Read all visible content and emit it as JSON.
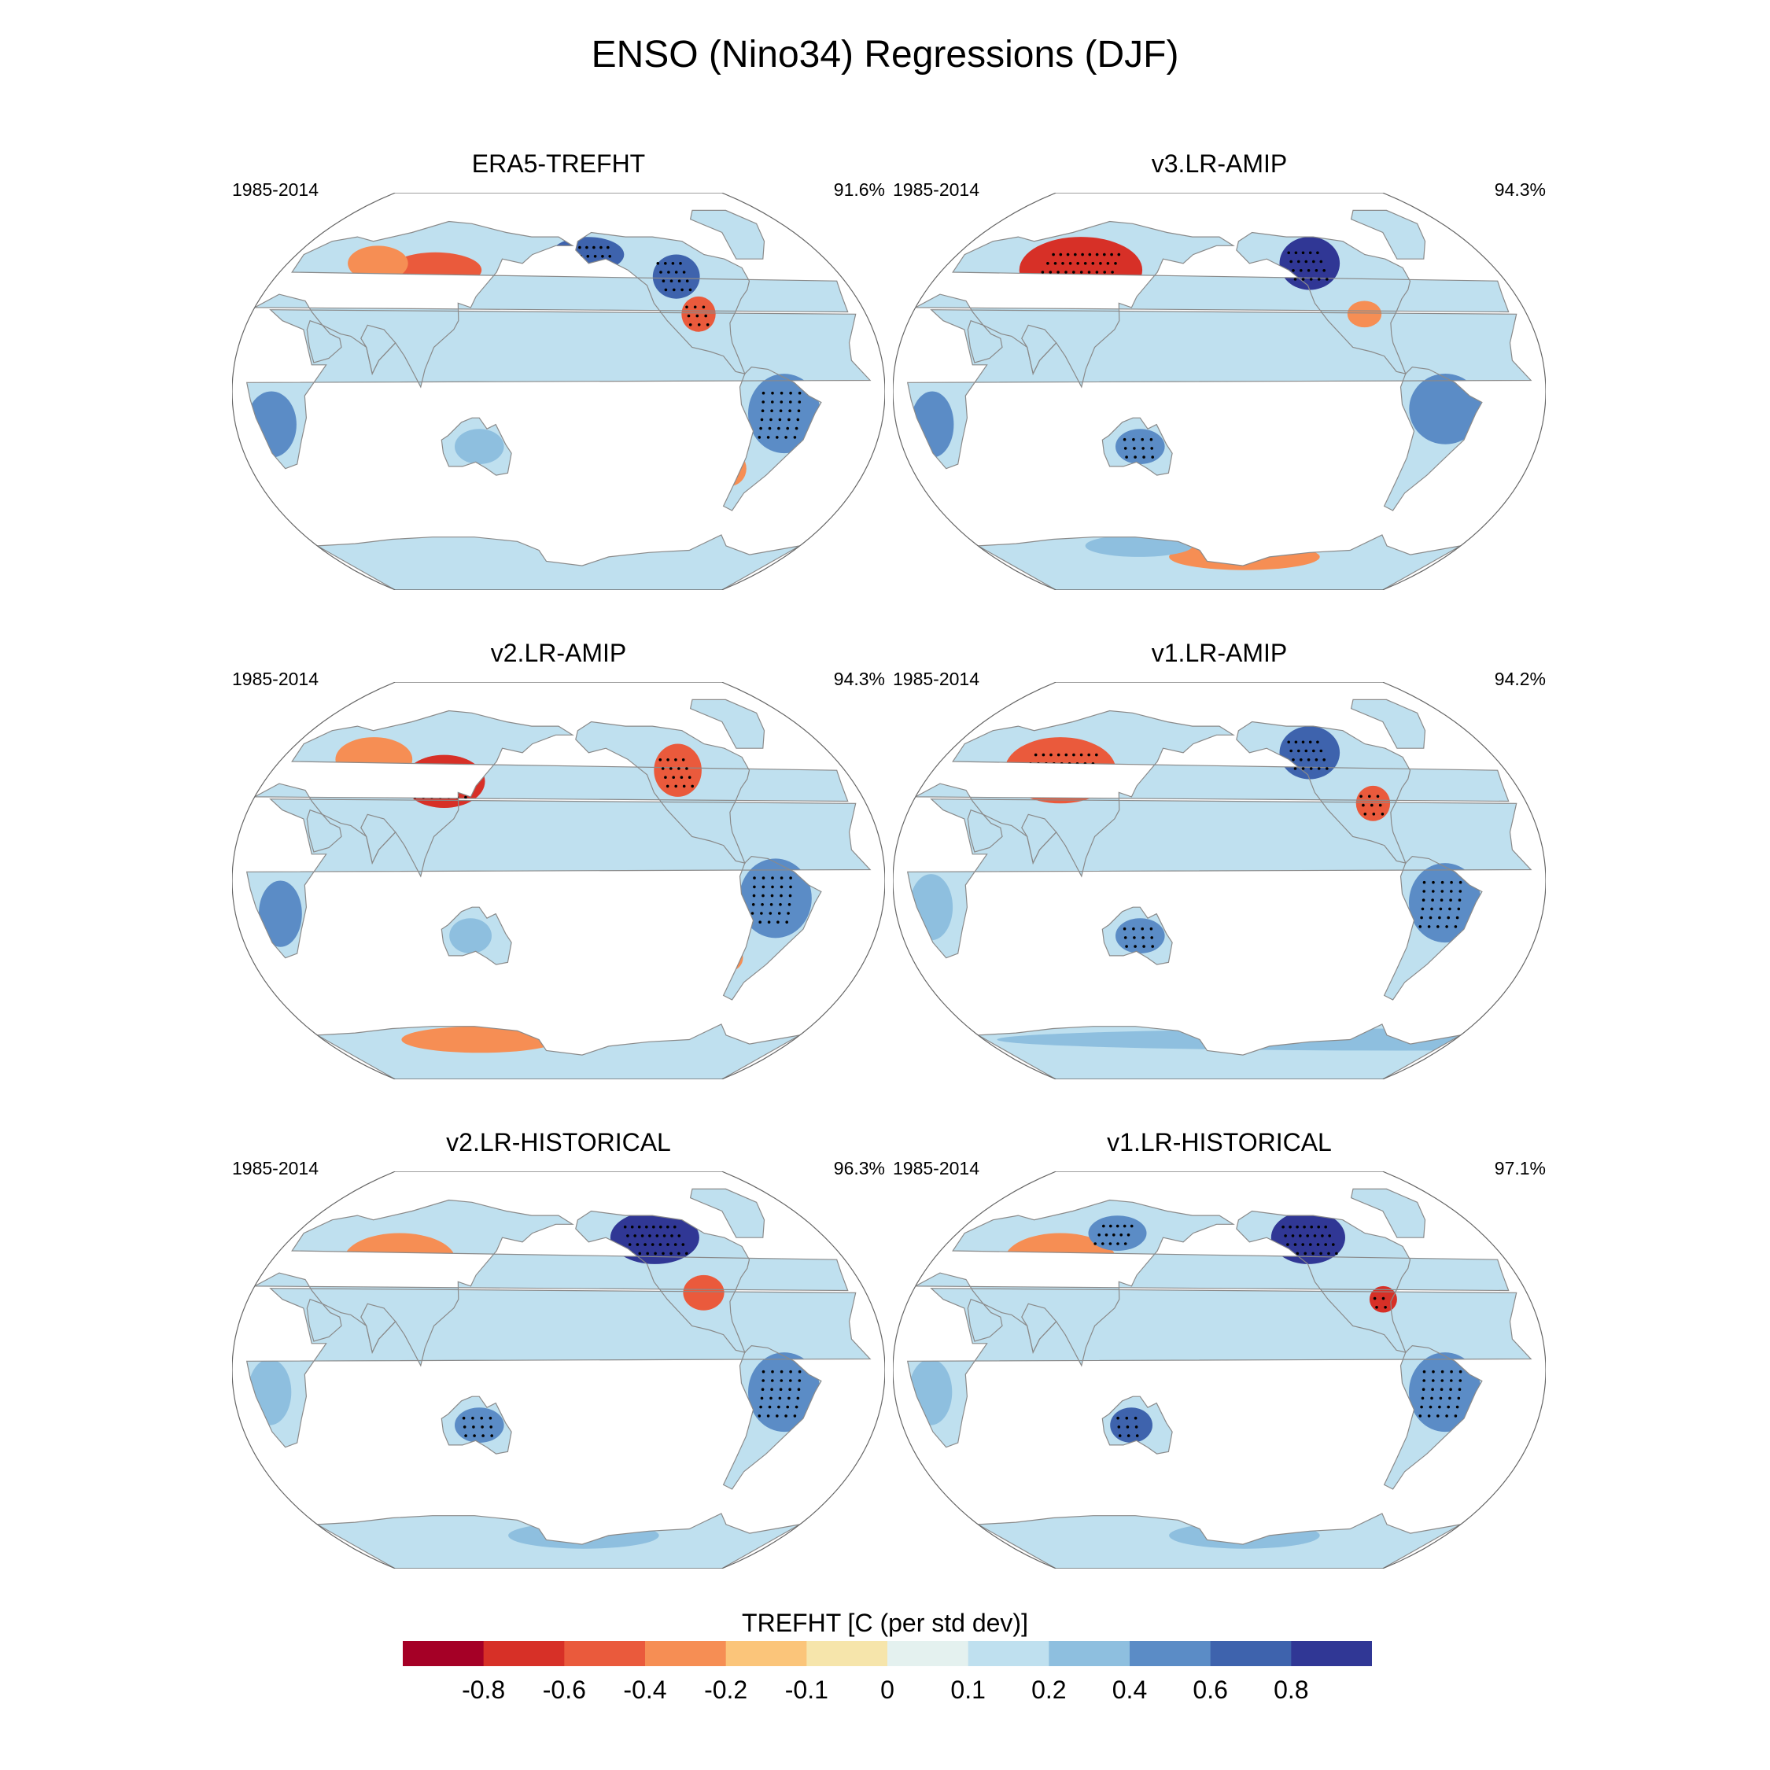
{
  "title": "ENSO (Nino34) Regressions (DJF)",
  "panels": [
    {
      "name": "ERA5-TREFHT",
      "period": "1985-2014",
      "percent": "91.6%"
    },
    {
      "name": "v3.LR-AMIP",
      "period": "1985-2014",
      "percent": "94.3%"
    },
    {
      "name": "v2.LR-AMIP",
      "period": "1985-2014",
      "percent": "94.3%"
    },
    {
      "name": "v1.LR-AMIP",
      "period": "1985-2014",
      "percent": "94.2%"
    },
    {
      "name": "v2.LR-HISTORICAL",
      "period": "1985-2014",
      "percent": "96.3%"
    },
    {
      "name": "v1.LR-HISTORICAL",
      "period": "1985-2014",
      "percent": "97.1%"
    }
  ],
  "colorbar": {
    "label": "TREFHT [C (per std dev)]",
    "ticks": [
      "-0.8",
      "-0.6",
      "-0.4",
      "-0.2",
      "-0.1",
      "0",
      "0.1",
      "0.2",
      "0.4",
      "0.6",
      "0.8"
    ],
    "colors": [
      "#a50026",
      "#d73027",
      "#ea5a3c",
      "#f68e54",
      "#fbc57a",
      "#f6e5ab",
      "#e4f1ef",
      "#bfe0ef",
      "#8ebfdf",
      "#5b8cc6",
      "#3e63ad",
      "#303795"
    ]
  },
  "map_features": {
    "projection": "Kavrayskiy VII, Pacific-centered",
    "stippling": "dots mark significant regression",
    "colors": {
      "ocean": "#ffffff",
      "coast": "#8a8a8a",
      "outline": "#666666"
    }
  }
}
